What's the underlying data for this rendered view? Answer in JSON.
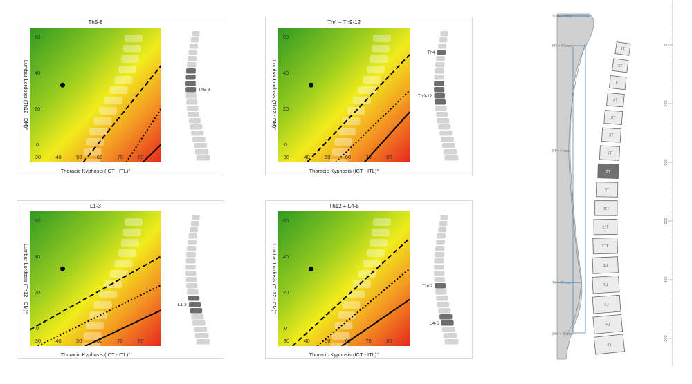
{
  "chart_data": [
    {
      "type": "line",
      "title": "Th5-8",
      "xlabel": "Thoracic Kyphosis (ICT - ITL)°",
      "ylabel": "Lumbar Lordosis (Th12 - DM)°",
      "xlim": [
        26,
        90
      ],
      "ylim": [
        -10,
        65
      ],
      "xticks": [
        "30",
        "40",
        "50",
        "60",
        "70",
        "80"
      ],
      "yticks": [
        "0",
        "20",
        "40",
        "60"
      ],
      "patient_point": {
        "x": 42,
        "y": 33
      },
      "series": [
        {
          "style": "dashed",
          "x": [
            52,
            90
          ],
          "y": [
            -10,
            44
          ]
        },
        {
          "style": "dotted",
          "x": [
            73,
            90
          ],
          "y": [
            -10,
            20
          ]
        },
        {
          "style": "solid",
          "x": [
            81,
            90
          ],
          "y": [
            -10,
            0
          ]
        }
      ],
      "spine_labels": [
        "Th5-8"
      ]
    },
    {
      "type": "line",
      "title": "Th4 + Th9-12",
      "xlabel": "Thoracic Kyphosis (ICT - ITL)°",
      "ylabel": "Lumbar Lordosis (Th12 - DM)°",
      "xlim": [
        26,
        90
      ],
      "ylim": [
        -10,
        65
      ],
      "xticks": [
        "30",
        "40",
        "50",
        "60",
        "70",
        "80"
      ],
      "yticks": [
        "0",
        "20",
        "40",
        "60"
      ],
      "patient_point": {
        "x": 42,
        "y": 33
      },
      "series": [
        {
          "style": "dashed",
          "x": [
            40,
            90
          ],
          "y": [
            -10,
            50
          ]
        },
        {
          "style": "dotted",
          "x": [
            54,
            90
          ],
          "y": [
            -10,
            30
          ]
        },
        {
          "style": "solid",
          "x": [
            68,
            90
          ],
          "y": [
            -10,
            18
          ]
        }
      ],
      "spine_labels": [
        "Th4",
        "Th9-12"
      ]
    },
    {
      "type": "line",
      "title": "L1-3",
      "xlabel": "Thoracic Kyphosis (ICT - ITL)°",
      "ylabel": "Lumbar Lordosis (Th12 - DM)°",
      "xlim": [
        26,
        90
      ],
      "ylim": [
        -10,
        65
      ],
      "xticks": [
        "30",
        "40",
        "50",
        "60",
        "70",
        "80"
      ],
      "yticks": [
        "0",
        "20",
        "40",
        "60"
      ],
      "patient_point": {
        "x": 42,
        "y": 33
      },
      "series": [
        {
          "style": "dashed",
          "x": [
            26,
            90
          ],
          "y": [
            -1,
            40
          ]
        },
        {
          "style": "dotted",
          "x": [
            30,
            90
          ],
          "y": [
            -10,
            24
          ]
        },
        {
          "style": "solid",
          "x": [
            53,
            90
          ],
          "y": [
            -10,
            10
          ]
        }
      ],
      "spine_labels": [
        "L1-3"
      ]
    },
    {
      "type": "line",
      "title": "Th12 + L4-5",
      "xlabel": "Thoracic Kyphosis (ICT - ITL)°",
      "ylabel": "Lumbar Lordosis (Th12 - DM)°",
      "xlim": [
        26,
        90
      ],
      "ylim": [
        -10,
        65
      ],
      "xticks": [
        "30",
        "40",
        "50",
        "60",
        "70",
        "80"
      ],
      "yticks": [
        "0",
        "20",
        "40",
        "60"
      ],
      "patient_point": {
        "x": 42,
        "y": 33
      },
      "series": [
        {
          "style": "dashed",
          "x": [
            33,
            90
          ],
          "y": [
            -10,
            50
          ]
        },
        {
          "style": "dotted",
          "x": [
            45,
            90
          ],
          "y": [
            -10,
            33
          ]
        },
        {
          "style": "solid",
          "x": [
            57,
            90
          ],
          "y": [
            -10,
            16
          ]
        }
      ],
      "spine_labels": [
        "Th12",
        "L4-5"
      ]
    }
  ],
  "side": {
    "profile_labels": [
      "mm 69 = C7",
      "mm T4 = TM",
      "mm 0 = T8",
      "mm T8 = 4T",
      "mm 35 = L4O"
    ],
    "vertebrae": [
      "T1",
      "T2",
      "T3",
      "T4",
      "T5",
      "T6",
      "T7",
      "T8",
      "T9",
      "T10",
      "T11",
      "T12",
      "L1",
      "L2",
      "L3",
      "L4",
      "L5"
    ],
    "highlighted": "T8",
    "ruler_ticks": [
      "0",
      "100",
      "200",
      "300",
      "400",
      "500"
    ],
    "colors": {
      "profile_fill": "#d0d0d0",
      "accent": "#4a90c8",
      "highlight": "#707070"
    }
  }
}
